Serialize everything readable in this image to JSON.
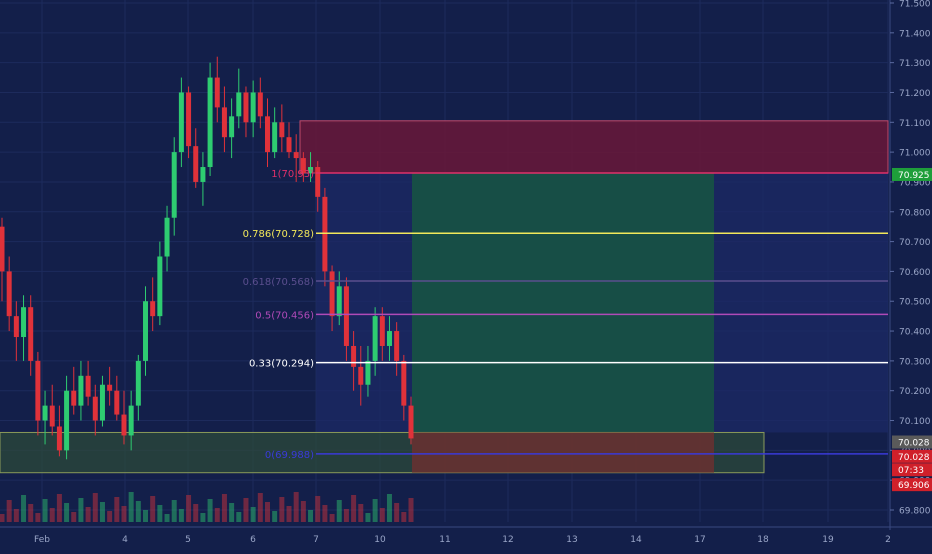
{
  "colors": {
    "background": "#131f4a",
    "grid": "#1d2b5c",
    "candle_up": "#2ecc71",
    "candle_down": "#e0323a",
    "sell_zone": "#6a1838",
    "buy_zone": "#175044",
    "support_box": "#2c4a3a",
    "axis_text": "#9aa6c8"
  },
  "chart_data": {
    "type": "candlestick",
    "symbol_hint": "",
    "y_axis": {
      "ticks": [
        "71.500",
        "71.400",
        "71.300",
        "71.200",
        "71.100",
        "71.000",
        "70.900",
        "70.800",
        "70.700",
        "70.600",
        "70.500",
        "70.400",
        "70.300",
        "70.200",
        "70.100",
        "70.000",
        "69.900",
        "69.800"
      ],
      "range": [
        69.78,
        71.52
      ]
    },
    "x_axis": {
      "ticks": [
        "Feb",
        "4",
        "5",
        "6",
        "7",
        "10",
        "11",
        "12",
        "13",
        "14",
        "17",
        "18",
        "19",
        "2"
      ]
    },
    "price_badges": [
      {
        "label": "70.925",
        "color": "#1e9e3a",
        "value": 70.925
      },
      {
        "label": "70.028",
        "color": "#5a5a5a",
        "value": 70.028
      },
      {
        "label": "70.028",
        "color": "#d0202a",
        "value": 69.98
      },
      {
        "label": "07:33",
        "color": "#d0202a",
        "value": 69.935
      },
      {
        "label": "69.906",
        "color": "#d0202a",
        "value": 69.885
      }
    ],
    "fib_levels": [
      {
        "label": "1(70.93)",
        "value": 70.93,
        "color": "#e0306a"
      },
      {
        "label": "0.786(70.728)",
        "value": 70.728,
        "color": "#f2e85a"
      },
      {
        "label": "0.618(70.568)",
        "value": 70.568,
        "color": "#5a4e8e"
      },
      {
        "label": "0.5(70.456)",
        "value": 70.456,
        "color": "#b04ab8"
      },
      {
        "label": "0.33(70.294)",
        "value": 70.294,
        "color": "#ffffff"
      },
      {
        "label": "0(69.988)",
        "value": 69.988,
        "color": "#3a3ad8"
      }
    ],
    "zones": {
      "sell": {
        "top": 71.105,
        "bottom": 70.93
      },
      "buy": {
        "top": 70.93,
        "bottom": 70.06
      },
      "stop": {
        "top": 70.06,
        "bottom": 69.925
      },
      "support": {
        "top": 70.06,
        "bottom": 69.925
      }
    },
    "candles": [
      {
        "o": 70.75,
        "h": 70.78,
        "l": 70.5,
        "c": 70.6
      },
      {
        "o": 70.6,
        "h": 70.65,
        "l": 70.4,
        "c": 70.45
      },
      {
        "o": 70.45,
        "h": 70.5,
        "l": 70.3,
        "c": 70.38
      },
      {
        "o": 70.38,
        "h": 70.52,
        "l": 70.3,
        "c": 70.48
      },
      {
        "o": 70.48,
        "h": 70.52,
        "l": 70.25,
        "c": 70.3
      },
      {
        "o": 70.3,
        "h": 70.33,
        "l": 70.05,
        "c": 70.1
      },
      {
        "o": 70.1,
        "h": 70.2,
        "l": 70.02,
        "c": 70.15
      },
      {
        "o": 70.15,
        "h": 70.22,
        "l": 70.05,
        "c": 70.08
      },
      {
        "o": 70.08,
        "h": 70.15,
        "l": 69.98,
        "c": 70.0
      },
      {
        "o": 70.0,
        "h": 70.25,
        "l": 69.97,
        "c": 70.2
      },
      {
        "o": 70.2,
        "h": 70.28,
        "l": 70.12,
        "c": 70.15
      },
      {
        "o": 70.15,
        "h": 70.3,
        "l": 70.1,
        "c": 70.25
      },
      {
        "o": 70.25,
        "h": 70.3,
        "l": 70.15,
        "c": 70.18
      },
      {
        "o": 70.18,
        "h": 70.22,
        "l": 70.05,
        "c": 70.1
      },
      {
        "o": 70.1,
        "h": 70.25,
        "l": 70.08,
        "c": 70.22
      },
      {
        "o": 70.22,
        "h": 70.28,
        "l": 70.15,
        "c": 70.2
      },
      {
        "o": 70.2,
        "h": 70.25,
        "l": 70.1,
        "c": 70.12
      },
      {
        "o": 70.12,
        "h": 70.2,
        "l": 70.02,
        "c": 70.05
      },
      {
        "o": 70.05,
        "h": 70.2,
        "l": 70.0,
        "c": 70.15
      },
      {
        "o": 70.15,
        "h": 70.32,
        "l": 70.1,
        "c": 70.3
      },
      {
        "o": 70.3,
        "h": 70.55,
        "l": 70.25,
        "c": 70.5
      },
      {
        "o": 70.5,
        "h": 70.58,
        "l": 70.4,
        "c": 70.45
      },
      {
        "o": 70.45,
        "h": 70.7,
        "l": 70.42,
        "c": 70.65
      },
      {
        "o": 70.65,
        "h": 70.82,
        "l": 70.6,
        "c": 70.78
      },
      {
        "o": 70.78,
        "h": 71.05,
        "l": 70.72,
        "c": 71.0
      },
      {
        "o": 71.0,
        "h": 71.25,
        "l": 70.95,
        "c": 71.2
      },
      {
        "o": 71.2,
        "h": 71.22,
        "l": 70.98,
        "c": 71.02
      },
      {
        "o": 71.02,
        "h": 71.08,
        "l": 70.88,
        "c": 70.9
      },
      {
        "o": 70.9,
        "h": 71.0,
        "l": 70.82,
        "c": 70.95
      },
      {
        "o": 70.95,
        "h": 71.3,
        "l": 70.92,
        "c": 71.25
      },
      {
        "o": 71.25,
        "h": 71.32,
        "l": 71.1,
        "c": 71.15
      },
      {
        "o": 71.15,
        "h": 71.22,
        "l": 71.0,
        "c": 71.05
      },
      {
        "o": 71.05,
        "h": 71.18,
        "l": 70.98,
        "c": 71.12
      },
      {
        "o": 71.12,
        "h": 71.28,
        "l": 71.08,
        "c": 71.2
      },
      {
        "o": 71.2,
        "h": 71.22,
        "l": 71.05,
        "c": 71.1
      },
      {
        "o": 71.1,
        "h": 71.24,
        "l": 71.05,
        "c": 71.2
      },
      {
        "o": 71.2,
        "h": 71.25,
        "l": 71.08,
        "c": 71.12
      },
      {
        "o": 71.12,
        "h": 71.18,
        "l": 70.95,
        "c": 71.0
      },
      {
        "o": 71.0,
        "h": 71.15,
        "l": 70.98,
        "c": 71.1
      },
      {
        "o": 71.1,
        "h": 71.16,
        "l": 71.0,
        "c": 71.05
      },
      {
        "o": 71.05,
        "h": 71.1,
        "l": 70.98,
        "c": 71.0
      },
      {
        "o": 71.0,
        "h": 71.06,
        "l": 70.9,
        "c": 70.98
      },
      {
        "o": 70.98,
        "h": 71.0,
        "l": 70.9,
        "c": 70.93
      },
      {
        "o": 70.93,
        "h": 71.0,
        "l": 70.9,
        "c": 70.95
      },
      {
        "o": 70.95,
        "h": 70.97,
        "l": 70.8,
        "c": 70.85
      },
      {
        "o": 70.85,
        "h": 70.88,
        "l": 70.55,
        "c": 70.6
      },
      {
        "o": 70.6,
        "h": 70.62,
        "l": 70.4,
        "c": 70.45
      },
      {
        "o": 70.45,
        "h": 70.6,
        "l": 70.42,
        "c": 70.55
      },
      {
        "o": 70.55,
        "h": 70.58,
        "l": 70.3,
        "c": 70.35
      },
      {
        "o": 70.35,
        "h": 70.4,
        "l": 70.2,
        "c": 70.28
      },
      {
        "o": 70.28,
        "h": 70.35,
        "l": 70.15,
        "c": 70.22
      },
      {
        "o": 70.22,
        "h": 70.35,
        "l": 70.18,
        "c": 70.3
      },
      {
        "o": 70.3,
        "h": 70.48,
        "l": 70.25,
        "c": 70.45
      },
      {
        "o": 70.45,
        "h": 70.48,
        "l": 70.3,
        "c": 70.35
      },
      {
        "o": 70.35,
        "h": 70.45,
        "l": 70.3,
        "c": 70.4
      },
      {
        "o": 70.4,
        "h": 70.43,
        "l": 70.25,
        "c": 70.3
      },
      {
        "o": 70.3,
        "h": 70.32,
        "l": 70.1,
        "c": 70.15
      },
      {
        "o": 70.15,
        "h": 70.18,
        "l": 70.02,
        "c": 70.04
      }
    ]
  }
}
